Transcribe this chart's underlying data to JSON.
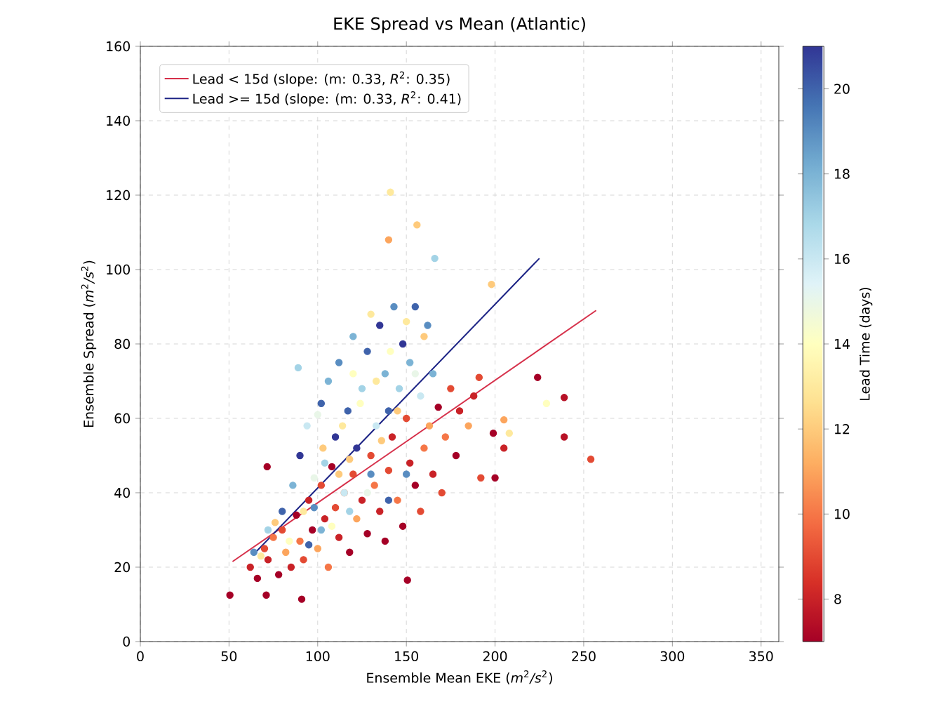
{
  "chart_data": {
    "type": "scatter",
    "title": "EKE Spread vs Mean (Atlantic)",
    "xlabel": "Ensemble Mean EKE (*m*$^{2}$*/s*$^{2}$)",
    "ylabel": "Ensemble Spread (*m*$^{2}$*/s*$^{2}$)",
    "clabel": "Lead Time (days)",
    "xlim": [
      0,
      360
    ],
    "ylim": [
      0,
      160
    ],
    "xticks": [
      0,
      50,
      100,
      150,
      200,
      250,
      300,
      350
    ],
    "yticks": [
      0,
      20,
      40,
      60,
      80,
      100,
      120,
      140,
      160
    ],
    "clim": [
      7,
      21
    ],
    "cticks": [
      8,
      10,
      12,
      14,
      16,
      18,
      20
    ],
    "grid": true,
    "legend": "top left",
    "series": [
      {
        "marker": "circle",
        "x": [
          62,
          66,
          70,
          72,
          75,
          78,
          80,
          82,
          85,
          88,
          90,
          92,
          95,
          97,
          100,
          102,
          104,
          106,
          108,
          110,
          112,
          115,
          118,
          120,
          122,
          125,
          128,
          130,
          132,
          135,
          138,
          140,
          142,
          145,
          148,
          150,
          152,
          155,
          158,
          160,
          163,
          165,
          168,
          170,
          172,
          175,
          178,
          180,
          185,
          188,
          68,
          76,
          84,
          92,
          98,
          103,
          108,
          114,
          118,
          124,
          128,
          133,
          136,
          141,
          145,
          150,
          155,
          160,
          130,
          120,
          112,
          100,
          64,
          72,
          80,
          86,
          90,
          94,
          98,
          102,
          104,
          106,
          110,
          112,
          115,
          117,
          120,
          122,
          125,
          128,
          130,
          133,
          135,
          138,
          140,
          143,
          146,
          148,
          152,
          155,
          158,
          162,
          165,
          102,
          95,
          118,
          140,
          150,
          141,
          156,
          140,
          166,
          89,
          224,
          239,
          239,
          254,
          229,
          198,
          205,
          208,
          199,
          205,
          192,
          200,
          191,
          50.5,
          91,
          71,
          150.6,
          71.5
        ],
        "values": [
          20,
          17,
          25,
          22,
          28,
          18,
          30,
          24,
          20,
          34,
          27,
          22,
          38,
          30,
          25,
          42,
          33,
          20,
          47,
          36,
          28,
          40,
          24,
          45,
          33,
          38,
          29,
          50,
          42,
          35,
          27,
          46,
          55,
          38,
          31,
          60,
          48,
          42,
          35,
          52,
          58,
          45,
          63,
          40,
          55,
          68,
          50,
          62,
          58,
          66,
          23,
          32,
          27,
          35,
          44,
          52,
          31,
          58,
          49,
          64,
          40,
          70,
          54,
          78,
          62,
          86,
          72,
          82,
          88,
          72,
          45,
          61,
          24,
          30,
          35,
          42,
          50,
          58,
          36,
          64,
          48,
          70,
          55,
          75,
          40,
          62,
          82,
          52,
          68,
          78,
          45,
          58,
          85,
          72,
          62,
          90,
          68,
          80,
          75,
          90,
          66,
          85,
          72,
          30,
          26,
          35,
          38,
          45,
          120.8,
          112,
          108,
          103,
          73.6,
          71,
          65.6,
          55,
          49,
          64,
          96,
          59.6,
          56,
          56,
          52,
          44,
          44,
          71,
          12.5,
          11.4,
          12.5,
          16.5,
          47
        ],
        "colors": [
          "#c92227",
          "#a50026",
          "#e34a33",
          "#c92227",
          "#f57647",
          "#a50026",
          "#e34a33",
          "#fca55d",
          "#c92227",
          "#a50026",
          "#f57647",
          "#e34a33",
          "#c92227",
          "#a50026",
          "#fca55d",
          "#e34a33",
          "#c92227",
          "#f57647",
          "#a50026",
          "#e34a33",
          "#c92227",
          "#f57647",
          "#a50026",
          "#e34a33",
          "#fca55d",
          "#c92227",
          "#a50026",
          "#e34a33",
          "#f57647",
          "#c92227",
          "#a50026",
          "#e34a33",
          "#c92227",
          "#f57647",
          "#a50026",
          "#e34a33",
          "#c92227",
          "#a50026",
          "#e34a33",
          "#f57647",
          "#fca55d",
          "#c92227",
          "#a50026",
          "#e34a33",
          "#f57647",
          "#e34a33",
          "#a50026",
          "#c92227",
          "#fca55d",
          "#c92227",
          "#fee99d",
          "#fecb7c",
          "#ffffbf",
          "#fee99d",
          "#e9f6e8",
          "#fecb7c",
          "#ffffbf",
          "#fee99d",
          "#fecb7c",
          "#ffffbf",
          "#e9f6e8",
          "#fee99d",
          "#fecb7c",
          "#ffffbf",
          "#fecb7c",
          "#fee99d",
          "#e9f6e8",
          "#fecb7c",
          "#fee99d",
          "#ffffbf",
          "#fecb7c",
          "#e9f6e8",
          "#598dc1",
          "#a3d3e6",
          "#3f63ab",
          "#7cb5d5",
          "#313695",
          "#c9e8f1",
          "#598dc1",
          "#3f63ab",
          "#a3d3e6",
          "#7cb5d5",
          "#313695",
          "#598dc1",
          "#c9e8f1",
          "#3f63ab",
          "#7cb5d5",
          "#313695",
          "#a3d3e6",
          "#3f63ab",
          "#598dc1",
          "#c9e8f1",
          "#313695",
          "#7cb5d5",
          "#3f63ab",
          "#598dc1",
          "#a3d3e6",
          "#313695",
          "#7cb5d5",
          "#3f63ab",
          "#c9e8f1",
          "#598dc1",
          "#7cb5d5",
          "#7cb5d5",
          "#3f63ab",
          "#a3d3e6",
          "#3f63ab",
          "#598dc1",
          "#fee99d",
          "#fecb7c",
          "#fca55d",
          "#a3d3e6",
          "#a3d3e6",
          "#a50026",
          "#b71126",
          "#b71126",
          "#e34a33",
          "#ffffbf",
          "#fecb7c",
          "#fca55d",
          "#fee99d",
          "#a50026",
          "#c92227",
          "#e34a33",
          "#a50026",
          "#e34a33",
          "#a50026",
          "#a50026",
          "#a50026",
          "#a50026",
          "#a50026"
        ],
        "cvalues": [
          8,
          7,
          9,
          8,
          10,
          7,
          9,
          11,
          8,
          7,
          10,
          9,
          8,
          7,
          11,
          9,
          8,
          10,
          7,
          9,
          8,
          10,
          7,
          9,
          11,
          8,
          7,
          9,
          10,
          8,
          7,
          9,
          8,
          10,
          7,
          9,
          8,
          7,
          9,
          10,
          11,
          8,
          7,
          9,
          10,
          9,
          7,
          8,
          11,
          8,
          13,
          12,
          14,
          13,
          15,
          12,
          14,
          13,
          12,
          14,
          15,
          13,
          12,
          14,
          12,
          13,
          15,
          12,
          13,
          14,
          12,
          15,
          19,
          17,
          20,
          18,
          21,
          16,
          19,
          20,
          17,
          18,
          21,
          19,
          16,
          20,
          18,
          21,
          17,
          20,
          19,
          16,
          21,
          18,
          20,
          19,
          17,
          21,
          18,
          20,
          16,
          19,
          18,
          18,
          20,
          17,
          20,
          19,
          13,
          12,
          11,
          17,
          17,
          7,
          7.5,
          7.5,
          9,
          14,
          12,
          11,
          13,
          7,
          8,
          9,
          7,
          9,
          7,
          7,
          7,
          7,
          7
        ]
      },
      {
        "type": "line",
        "marker": "none",
        "name": "Lead < 15d (slope: (m: 0.33, *R*$^{2}$: 0.35)",
        "color": "#d6304a",
        "x": [
          52,
          257
        ],
        "values": [
          21.5,
          89
        ]
      },
      {
        "type": "line",
        "marker": "none",
        "name": "Lead >= 15d (slope: (m: 0.33, *R*$^{2}$: 0.41)",
        "color": "#1c2385",
        "x": [
          65,
          225
        ],
        "values": [
          24,
          103
        ]
      }
    ]
  }
}
